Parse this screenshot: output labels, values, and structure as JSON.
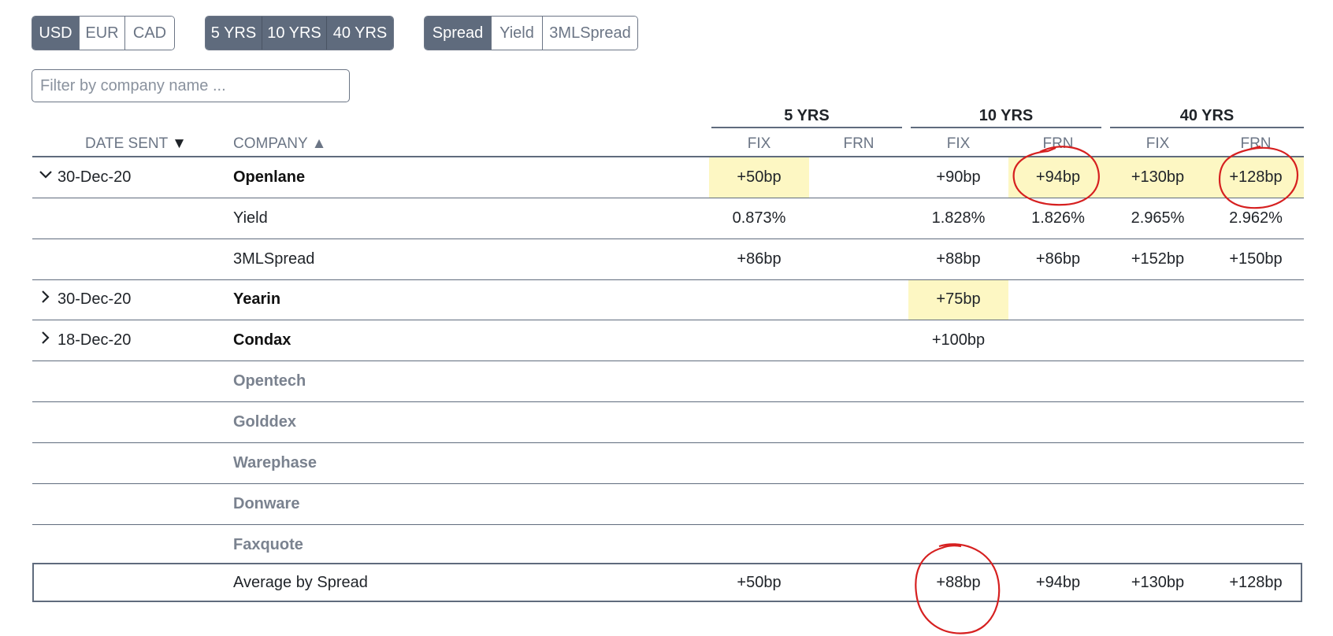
{
  "currency": {
    "options": [
      "USD",
      "EUR",
      "CAD"
    ],
    "selected": "USD"
  },
  "tenor": {
    "options": [
      "5 YRS",
      "10 YRS",
      "40 YRS"
    ]
  },
  "metric": {
    "options": [
      "Spread",
      "Yield",
      "3MLSpread"
    ],
    "selected": "Spread"
  },
  "filter": {
    "placeholder": "Filter by company name ...",
    "value": ""
  },
  "table": {
    "group_headers": [
      "5 YRS",
      "10 YRS",
      "40 YRS"
    ],
    "col_headers": {
      "date": "DATE SENT",
      "date_sort": "▼",
      "company": "COMPANY",
      "company_sort": "▲",
      "sub": [
        "FIX",
        "FRN",
        "FIX",
        "FRN",
        "FIX",
        "FRN"
      ]
    },
    "rows": [
      {
        "expanded": true,
        "date": "30-Dec-20",
        "company": "Openlane",
        "values": [
          "+50bp",
          "",
          "+90bp",
          "+94bp",
          "+130bp",
          "+128bp"
        ]
      },
      {
        "label": "Yield",
        "values": [
          "0.873%",
          "",
          "1.828%",
          "1.826%",
          "2.965%",
          "2.962%"
        ]
      },
      {
        "label": "3MLSpread",
        "values": [
          "+86bp",
          "",
          "+88bp",
          "+86bp",
          "+152bp",
          "+150bp"
        ]
      },
      {
        "expanded": false,
        "date": "30-Dec-20",
        "company": "Yearin",
        "values": [
          "",
          "",
          "+75bp",
          "",
          "",
          ""
        ]
      },
      {
        "expanded": false,
        "date": "18-Dec-20",
        "company": "Condax",
        "values": [
          "",
          "",
          "+100bp",
          "",
          "",
          ""
        ]
      },
      {
        "company": "Opentech"
      },
      {
        "company": "Golddex"
      },
      {
        "company": "Warephase"
      },
      {
        "company": "Donware"
      },
      {
        "company": "Faxquote"
      }
    ],
    "average": {
      "label": "Average by Spread",
      "values": [
        "+50bp",
        "",
        "+88bp",
        "+94bp",
        "+130bp",
        "+128bp"
      ]
    }
  },
  "colors": {
    "highlight": "#fdf7c3",
    "annotation": "#d62020",
    "accent": "#5f6b7d"
  },
  "icons": {
    "expanded": "chevron-down-icon",
    "collapsed": "chevron-right-icon"
  }
}
